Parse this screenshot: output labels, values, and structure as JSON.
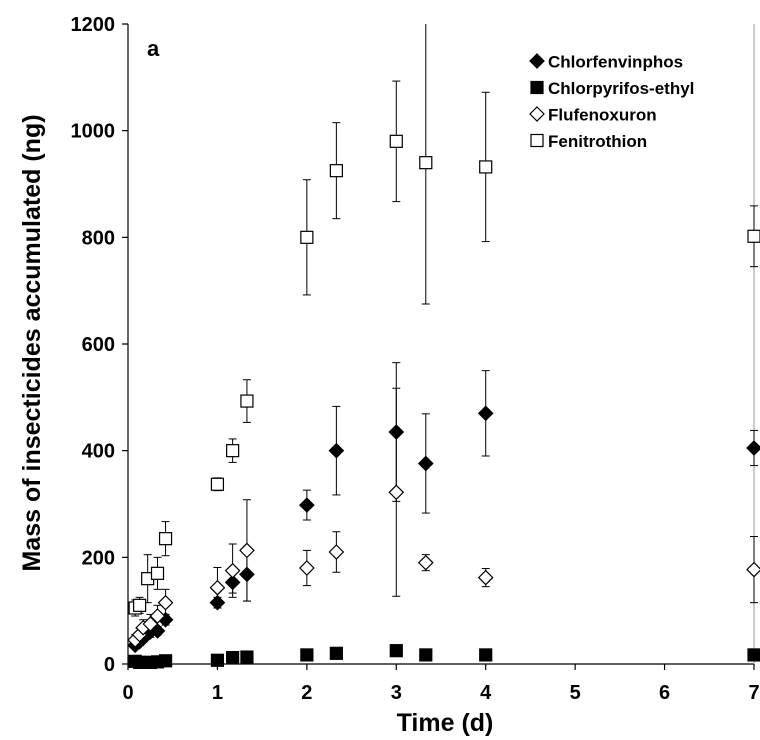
{
  "chart_data": {
    "type": "scatter",
    "panel_label": "a",
    "xlabel": "Time (d)",
    "ylabel": "Mass of insecticides accumulated (ng)",
    "xlim": [
      0,
      7
    ],
    "ylim": [
      0,
      1200
    ],
    "xticks": [
      0,
      1,
      2,
      3,
      4,
      5,
      6,
      7
    ],
    "yticks": [
      0,
      200,
      400,
      600,
      800,
      1000,
      1200
    ],
    "grid": false,
    "legend_position": "top-right",
    "series": [
      {
        "name": "Chlorfenvinphos",
        "marker": "diamond-filled",
        "points": [
          {
            "x": 0.08,
            "y": 35,
            "err": 5
          },
          {
            "x": 0.13,
            "y": 42,
            "err": 6
          },
          {
            "x": 0.17,
            "y": 48,
            "err": 7
          },
          {
            "x": 0.25,
            "y": 60,
            "err": 10
          },
          {
            "x": 0.33,
            "y": 62,
            "err": 8
          },
          {
            "x": 0.42,
            "y": 83,
            "err": 10
          },
          {
            "x": 1.0,
            "y": 115,
            "err": 10
          },
          {
            "x": 1.17,
            "y": 153,
            "err": 20
          },
          {
            "x": 1.33,
            "y": 168,
            "err": 50
          },
          {
            "x": 2.0,
            "y": 298,
            "err": 28
          },
          {
            "x": 2.33,
            "y": 400,
            "err": 83
          },
          {
            "x": 3.0,
            "y": 435,
            "err": 130
          },
          {
            "x": 3.33,
            "y": 376,
            "err": 93
          },
          {
            "x": 4.0,
            "y": 470,
            "err": 80
          },
          {
            "x": 7.0,
            "y": 405,
            "err": 33
          }
        ]
      },
      {
        "name": "Chlorpyrifos-ethyl",
        "marker": "square-filled",
        "points": [
          {
            "x": 0.08,
            "y": 5,
            "err": 1
          },
          {
            "x": 0.13,
            "y": 3,
            "err": 1
          },
          {
            "x": 0.17,
            "y": 3,
            "err": 1
          },
          {
            "x": 0.25,
            "y": 3,
            "err": 1
          },
          {
            "x": 0.33,
            "y": 4,
            "err": 1
          },
          {
            "x": 0.42,
            "y": 6,
            "err": 1
          },
          {
            "x": 1.0,
            "y": 7,
            "err": 1
          },
          {
            "x": 1.17,
            "y": 12,
            "err": 2
          },
          {
            "x": 1.33,
            "y": 13,
            "err": 2
          },
          {
            "x": 2.0,
            "y": 17,
            "err": 2
          },
          {
            "x": 2.33,
            "y": 20,
            "err": 3
          },
          {
            "x": 3.0,
            "y": 25,
            "err": 3
          },
          {
            "x": 3.33,
            "y": 17,
            "err": 2
          },
          {
            "x": 4.0,
            "y": 17,
            "err": 2
          },
          {
            "x": 7.0,
            "y": 17,
            "err": 2
          }
        ]
      },
      {
        "name": "Flufenoxuron",
        "marker": "diamond-open",
        "points": [
          {
            "x": 0.08,
            "y": 45,
            "err": 10
          },
          {
            "x": 0.13,
            "y": 55,
            "err": 12
          },
          {
            "x": 0.17,
            "y": 68,
            "err": 15
          },
          {
            "x": 0.25,
            "y": 75,
            "err": 18
          },
          {
            "x": 0.33,
            "y": 90,
            "err": 20
          },
          {
            "x": 0.42,
            "y": 115,
            "err": 25
          },
          {
            "x": 1.0,
            "y": 143,
            "err": 38
          },
          {
            "x": 1.17,
            "y": 175,
            "err": 50
          },
          {
            "x": 1.33,
            "y": 213,
            "err": 95
          },
          {
            "x": 2.0,
            "y": 180,
            "err": 33
          },
          {
            "x": 2.33,
            "y": 210,
            "err": 38
          },
          {
            "x": 3.0,
            "y": 322,
            "err": 195
          },
          {
            "x": 3.33,
            "y": 190,
            "err": 15
          },
          {
            "x": 4.0,
            "y": 162,
            "err": 17
          },
          {
            "x": 7.0,
            "y": 177,
            "err": 62
          }
        ]
      },
      {
        "name": "Fenitrothion",
        "marker": "square-open",
        "points": [
          {
            "x": 0.08,
            "y": 105,
            "err": 15
          },
          {
            "x": 0.13,
            "y": 110,
            "err": 15
          },
          {
            "x": 0.22,
            "y": 160,
            "err": 45
          },
          {
            "x": 0.33,
            "y": 170,
            "err": 30
          },
          {
            "x": 0.42,
            "y": 235,
            "err": 32
          },
          {
            "x": 1.0,
            "y": 337,
            "err": 12
          },
          {
            "x": 1.17,
            "y": 400,
            "err": 22
          },
          {
            "x": 1.33,
            "y": 493,
            "err": 40
          },
          {
            "x": 2.0,
            "y": 800,
            "err": 108
          },
          {
            "x": 2.33,
            "y": 925,
            "err": 90
          },
          {
            "x": 3.0,
            "y": 980,
            "err": 113
          },
          {
            "x": 3.33,
            "y": 940,
            "err": 265
          },
          {
            "x": 4.0,
            "y": 932,
            "err": 140
          },
          {
            "x": 7.0,
            "y": 802,
            "err": 57
          }
        ]
      }
    ]
  }
}
